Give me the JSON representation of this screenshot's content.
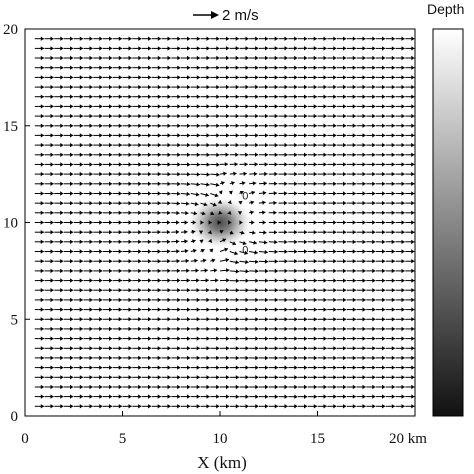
{
  "chart_data": {
    "type": "vector-field",
    "xlabel": "X (km)",
    "ylabel": "",
    "x_ticks": [
      "0",
      "5",
      "10",
      "15",
      "20 km"
    ],
    "y_ticks": [
      "0",
      "5",
      "10",
      "15",
      "20"
    ],
    "xlim": [
      0,
      20
    ],
    "ylim": [
      0,
      20
    ],
    "grid": false,
    "scale_arrow": {
      "label": "2 m/s",
      "speed": 2
    },
    "background_flow": {
      "u": 2.0,
      "v": 0.0,
      "grid_spacing_km": 0.5
    },
    "depression": {
      "center_x": 10,
      "center_y": 10,
      "radius_x": 1.6,
      "radius_y": 1.3
    },
    "contour_labels": [
      {
        "text": "0",
        "x": 11.3,
        "y": 11.4
      },
      {
        "text": "0",
        "x": 11.3,
        "y": 8.6
      }
    ],
    "colorbar": {
      "title": "Depth",
      "colors": [
        "#ffffff",
        "#111111"
      ]
    }
  }
}
